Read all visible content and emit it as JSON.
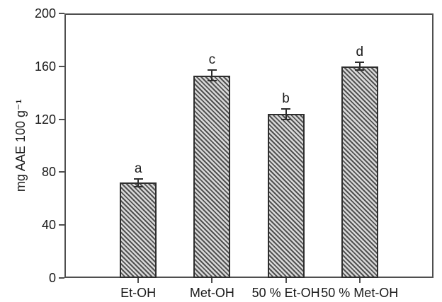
{
  "chart_data": {
    "type": "bar",
    "title": "",
    "xlabel": "",
    "ylabel": "mg AAE 100 g⁻¹",
    "categories": [
      "Et-OH",
      "Met-OH",
      "50 % Et-OH",
      "50 % Met-OH"
    ],
    "values": [
      72,
      153,
      124,
      160
    ],
    "errors": [
      3,
      4,
      4,
      3
    ],
    "sig_letters": [
      "a",
      "c",
      "b",
      "d"
    ],
    "ylim": [
      0,
      200
    ],
    "yticks": [
      0,
      40,
      80,
      120,
      160,
      200
    ],
    "grid": false,
    "legend": "none",
    "hatch": "diagonal-down",
    "colors": {
      "axis": "#4f4f4f",
      "text": "#1a1a1a",
      "bar_edge": "#2e2e2e",
      "hatch_light": "#d9d9d9",
      "hatch_dark": "#515151",
      "background": "#ffffff"
    }
  }
}
